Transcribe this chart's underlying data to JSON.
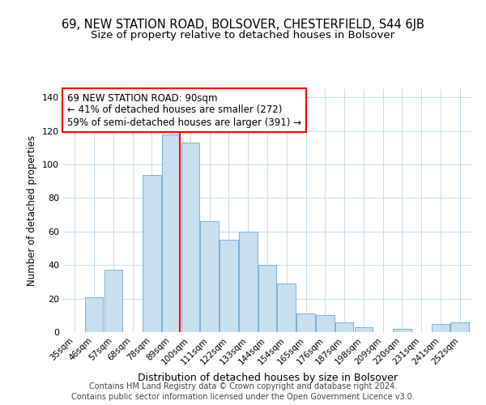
{
  "title": "69, NEW STATION ROAD, BOLSOVER, CHESTERFIELD, S44 6JB",
  "subtitle": "Size of property relative to detached houses in Bolsover",
  "xlabel": "Distribution of detached houses by size in Bolsover",
  "ylabel": "Number of detached properties",
  "bar_labels": [
    "35sqm",
    "46sqm",
    "57sqm",
    "68sqm",
    "78sqm",
    "89sqm",
    "100sqm",
    "111sqm",
    "122sqm",
    "133sqm",
    "144sqm",
    "154sqm",
    "165sqm",
    "176sqm",
    "187sqm",
    "198sqm",
    "209sqm",
    "220sqm",
    "231sqm",
    "241sqm",
    "252sqm"
  ],
  "bar_values": [
    0,
    21,
    37,
    0,
    94,
    118,
    113,
    66,
    55,
    60,
    40,
    29,
    11,
    10,
    6,
    3,
    0,
    2,
    0,
    5,
    6
  ],
  "bar_color": "#c8dff0",
  "bar_edge_color": "#7aafd4",
  "highlight_line_color": "red",
  "annotation_line1": "69 NEW STATION ROAD: 90sqm",
  "annotation_line2": "← 41% of detached houses are smaller (272)",
  "annotation_line3": "59% of semi-detached houses are larger (391) →",
  "annotation_box_color": "red",
  "annotation_box_fill": "white",
  "ylim": [
    0,
    145
  ],
  "yticks": [
    0,
    20,
    40,
    60,
    80,
    100,
    120,
    140
  ],
  "footer_line1": "Contains HM Land Registry data © Crown copyright and database right 2024.",
  "footer_line2": "Contains public sector information licensed under the Open Government Licence v3.0.",
  "title_fontsize": 10.5,
  "subtitle_fontsize": 9.5,
  "annotation_fontsize": 8.5,
  "footer_fontsize": 7.0,
  "ylabel_fontsize": 8.5,
  "xlabel_fontsize": 9.0
}
